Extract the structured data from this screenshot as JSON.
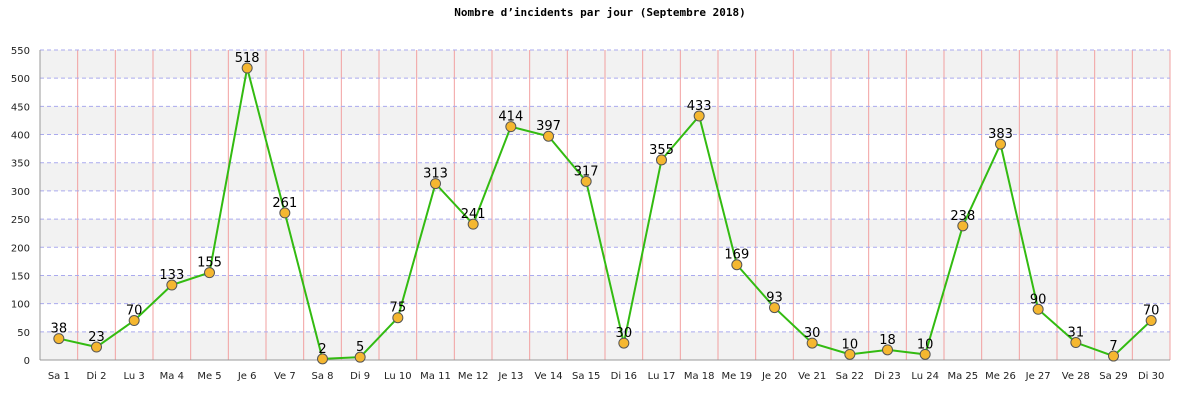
{
  "chart_data": {
    "type": "line",
    "title": "Nombre d’incidents par jour (Septembre 2018)",
    "xlabel": "",
    "ylabel": "",
    "ylim": [
      0,
      550
    ],
    "ytick_step": 50,
    "categories": [
      "Sa 1",
      "Di 2",
      "Lu 3",
      "Ma 4",
      "Me 5",
      "Je 6",
      "Ve 7",
      "Sa 8",
      "Di 9",
      "Lu 10",
      "Ma 11",
      "Me 12",
      "Je 13",
      "Ve 14",
      "Sa 15",
      "Di 16",
      "Lu 17",
      "Ma 18",
      "Me 19",
      "Je 20",
      "Ve 21",
      "Sa 22",
      "Di 23",
      "Lu 24",
      "Ma 25",
      "Me 26",
      "Je 27",
      "Ve 28",
      "Sa 29",
      "Di 30"
    ],
    "series": [
      {
        "values": [
          38,
          23,
          70,
          133,
          155,
          518,
          261,
          2,
          5,
          75,
          313,
          241,
          414,
          397,
          317,
          30,
          355,
          433,
          169,
          93,
          30,
          10,
          18,
          10,
          238,
          383,
          90,
          31,
          7,
          70
        ]
      }
    ],
    "grid": true,
    "colors": {
      "line": "#33bb11",
      "marker_fill": "#f5b730",
      "marker_stroke": "#555555",
      "vertical_grid": "#f2a0a0",
      "horizontal_grid": "#aaaaee",
      "band": "#f2f2f2"
    }
  }
}
